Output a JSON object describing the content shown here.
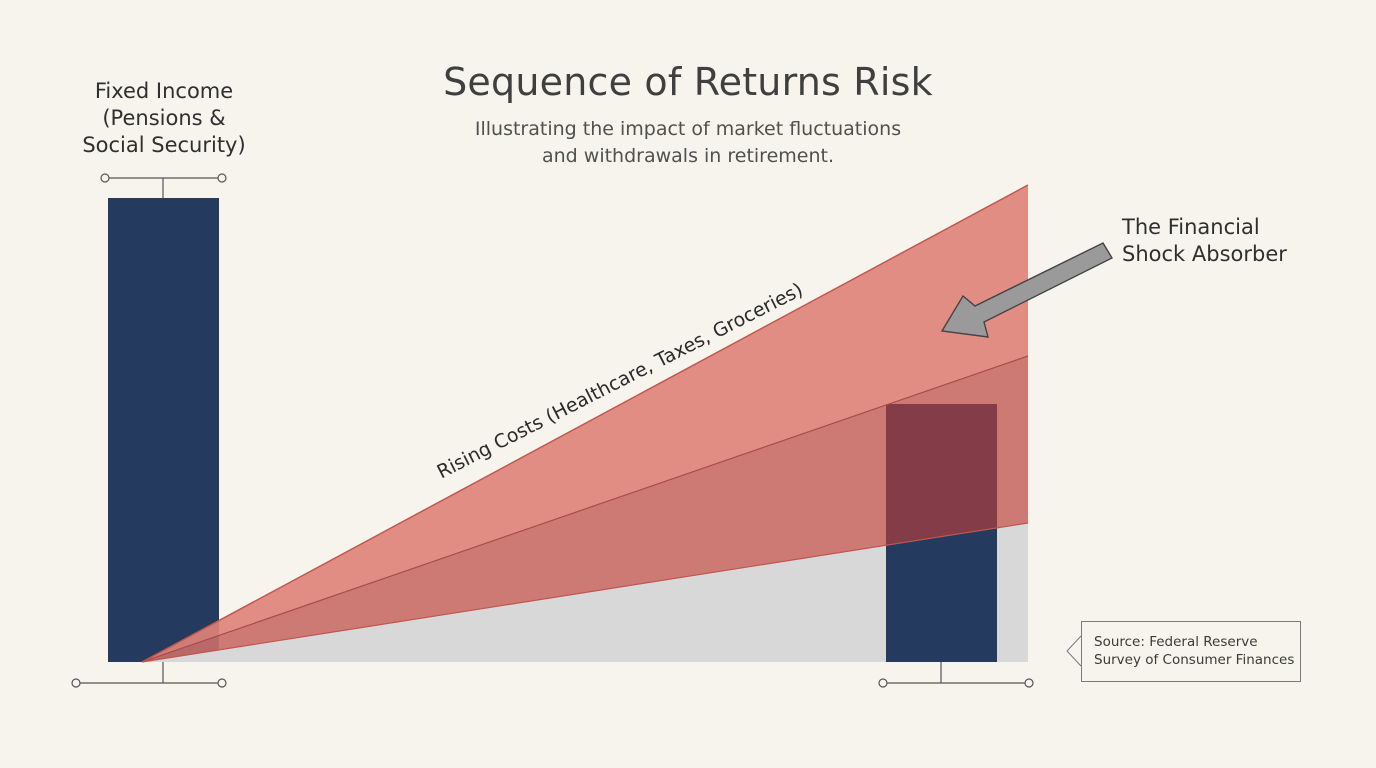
{
  "title": "Sequence of Returns Risk",
  "subtitle": "Illustrating the impact of market fluctuations\nand withdrawals in retirement.",
  "labels": {
    "fixed_income": "Fixed Income\n(Pensions &\nSocial Security)",
    "shock_absorber": "The Financial\nShock Absorber",
    "rising_costs": "Rising Costs (Healthcare, Taxes, Groceries)"
  },
  "source": "Source: Federal Reserve\nSurvey of Consumer Finances",
  "colors": {
    "background": "#f7f4ee",
    "bar": "#243a5e",
    "wedge_light": "#e0837a",
    "wedge_mid": "#c96e69",
    "gray_area": "#d8d8d8",
    "overlap": "#843d48",
    "arrow": "#9a9a9a",
    "wedge_stroke": "#c2564f"
  }
}
